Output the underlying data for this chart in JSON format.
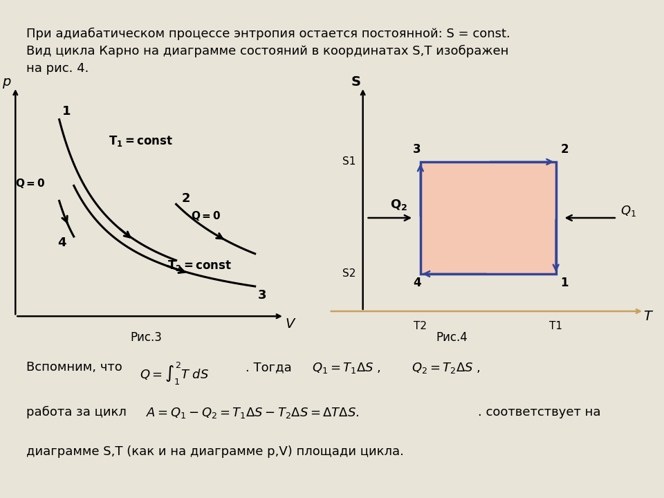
{
  "bg_color": "#e8e4d8",
  "panel_color": "#f0ede4",
  "white_panel": "#ffffff",
  "fig_width": 9.6,
  "fig_height": 7.2,
  "top_line1": "При адиабатическом процессе энтропия остается постоянной: S = const.",
  "top_line2": "Вид цикла Карно на диаграмме состояний в координатах S,T изображен",
  "top_line3": "на рис. 4.",
  "ris3_label": "Рис.3",
  "ris4_label": "Рис.4",
  "bot_line1a": "Вспомним, что",
  "bot_line1b": ". Тогда",
  "bot_line2a": "работа за цикл",
  "bot_line2b": ". соответствует на",
  "bot_line3": "диаграмме S,T (как и на диаграмме p,V) площади цикла."
}
